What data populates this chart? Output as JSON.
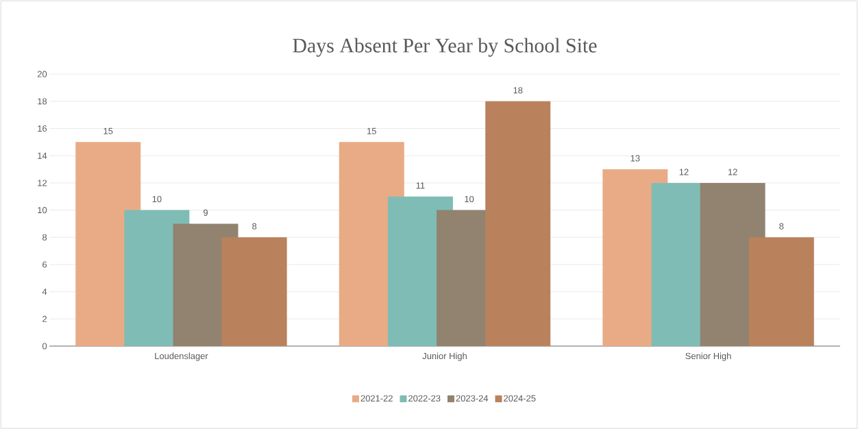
{
  "chart_data": {
    "type": "bar",
    "title": "Days Absent Per Year by School Site",
    "categories": [
      "Loudenslager",
      "Junior High",
      "Senior High"
    ],
    "series": [
      {
        "name": "2021-22",
        "color": "#e9ab85",
        "values": [
          15,
          15,
          13
        ]
      },
      {
        "name": "2022-23",
        "color": "#7fbcb5",
        "values": [
          10,
          11,
          12
        ]
      },
      {
        "name": "2023-24",
        "color": "#918370",
        "values": [
          9,
          10,
          12
        ]
      },
      {
        "name": "2024-25",
        "color": "#b9825c",
        "values": [
          8,
          18,
          8
        ]
      }
    ],
    "ylim": [
      0,
      20
    ],
    "yticks": [
      0,
      2,
      4,
      6,
      8,
      10,
      12,
      14,
      16,
      18,
      20
    ],
    "grid": "y",
    "legend": "bottom",
    "data_labels": true
  }
}
